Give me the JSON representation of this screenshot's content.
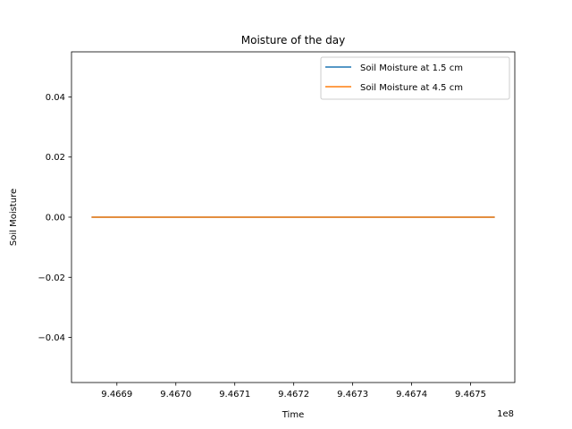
{
  "chart_data": {
    "type": "line",
    "title": "Moisture of the day",
    "xlabel": "Time",
    "ylabel": "Soil Moisture",
    "x_offset_label": "1e8",
    "xlim": [
      9.466823,
      9.467575
    ],
    "ylim": [
      -0.055,
      0.055
    ],
    "xticks": [
      9.4669,
      9.467,
      9.4671,
      9.4672,
      9.4673,
      9.4674,
      9.4675
    ],
    "xtick_labels": [
      "9.4669",
      "9.4670",
      "9.4671",
      "9.4672",
      "9.4673",
      "9.4674",
      "9.4675"
    ],
    "yticks": [
      -0.04,
      -0.02,
      0.0,
      0.02,
      0.04
    ],
    "ytick_labels": [
      "−0.04",
      "−0.02",
      "0.00",
      "0.02",
      "0.04"
    ],
    "grid": false,
    "legend_position": "top-right",
    "series": [
      {
        "name": "Soil Moisture at 1.5 cm",
        "color": "#1f77b4",
        "x": [
          9.466857,
          9.467541
        ],
        "y": [
          0.0,
          0.0
        ]
      },
      {
        "name": "Soil Moisture at 4.5 cm",
        "color": "#ff7f0e",
        "x": [
          9.466857,
          9.467541
        ],
        "y": [
          0.0,
          0.0
        ]
      }
    ]
  }
}
